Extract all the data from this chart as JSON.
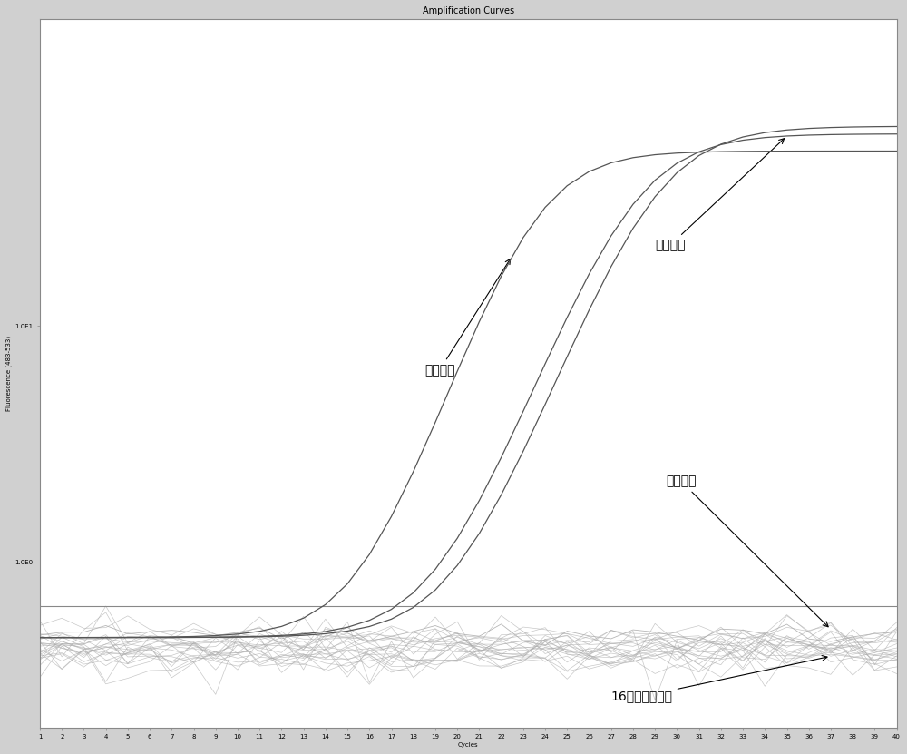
{
  "title": "Amplification Curves",
  "xlabel": "Cycles",
  "ylabel": "Fluorescence (483-533)",
  "xlim": [
    1,
    40
  ],
  "x_ticks": [
    1,
    2,
    3,
    4,
    5,
    6,
    7,
    8,
    9,
    10,
    11,
    12,
    13,
    14,
    15,
    16,
    17,
    18,
    19,
    20,
    21,
    22,
    23,
    24,
    25,
    26,
    27,
    28,
    29,
    30,
    31,
    32,
    33,
    34,
    35,
    36,
    37,
    38,
    39,
    40
  ],
  "ytick_positions": [
    1.0,
    10.0
  ],
  "ytick_labels": [
    "1.0E0",
    "1.0E1"
  ],
  "threshold_val": 0.65,
  "bg_color": "#d0d0d0",
  "plot_bg_color": "#ffffff",
  "curve_color_positive": "#555555",
  "curve_color_flat": "#aaaaaa",
  "annotation_color": "#000000",
  "title_fontsize": 7,
  "axis_label_fontsize": 5,
  "tick_fontsize": 5,
  "annotation_fontsize": 10
}
